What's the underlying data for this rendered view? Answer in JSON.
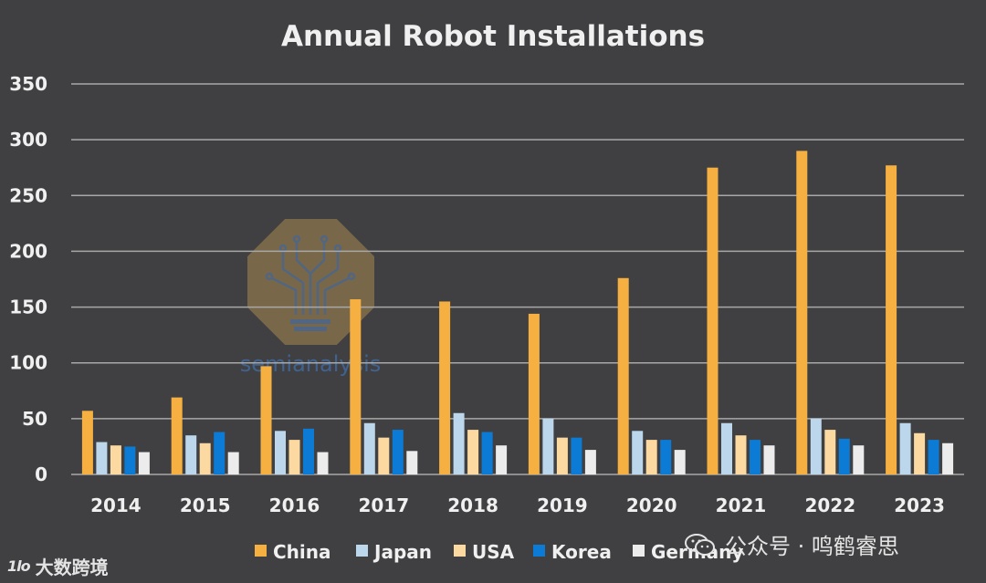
{
  "chart_data": {
    "type": "bar",
    "title": "Annual Robot Installations",
    "xlabel": "",
    "ylabel": "",
    "categories": [
      "2014",
      "2015",
      "2016",
      "2017",
      "2018",
      "2019",
      "2020",
      "2021",
      "2022",
      "2023"
    ],
    "series": [
      {
        "name": "China",
        "color": "#f5b041",
        "values": [
          57,
          69,
          97,
          157,
          155,
          144,
          176,
          275,
          290,
          277
        ]
      },
      {
        "name": "Japan",
        "color": "#bcd7ec",
        "values": [
          29,
          35,
          39,
          46,
          55,
          50,
          39,
          46,
          50,
          46
        ]
      },
      {
        "name": "USA",
        "color": "#fbd9a1",
        "values": [
          26,
          28,
          31,
          33,
          40,
          33,
          31,
          35,
          40,
          37
        ]
      },
      {
        "name": "Korea",
        "color": "#0b7bd6",
        "values": [
          25,
          38,
          41,
          40,
          38,
          33,
          31,
          31,
          32,
          31
        ]
      },
      {
        "name": "Germany",
        "color": "#ececec",
        "values": [
          20,
          20,
          20,
          21,
          26,
          22,
          22,
          26,
          26,
          28
        ]
      }
    ],
    "ylim": [
      0,
      350
    ],
    "yticks": [
      0,
      50,
      100,
      150,
      200,
      250,
      300,
      350
    ],
    "grid": true,
    "legend_position": "bottom"
  },
  "watermarks": {
    "center_logo_text": "semianalysis",
    "bottom_left": "大数跨境",
    "bottom_left_logo": "1lo",
    "bottom_right": "公众号 · 鸣鹤睿思"
  },
  "colors": {
    "background": "#404042",
    "gridline": "#a8a8a8",
    "text": "#f0f0f0"
  }
}
